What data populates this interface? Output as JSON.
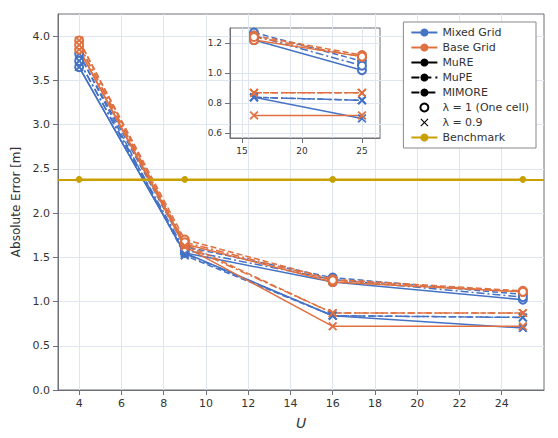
{
  "chart_data": [
    {
      "type": "line",
      "xlabel": "U",
      "ylabel": "Absolute Error [m]",
      "xlim": [
        3,
        26
      ],
      "ylim": [
        0,
        4.25
      ],
      "xticks": [
        4,
        6,
        8,
        10,
        12,
        14,
        16,
        18,
        20,
        22,
        24
      ],
      "yticks": [
        {
          "value": 0,
          "label": "0.0"
        },
        0.5,
        {
          "value": 1,
          "label": "1.0"
        },
        1.5,
        {
          "value": 2,
          "label": "2.0"
        },
        2.5,
        {
          "value": 3,
          "label": "3.0"
        },
        3.5,
        {
          "value": 4,
          "label": "4.0"
        }
      ],
      "grid": true,
      "legend": "upper right",
      "legend_items": [
        {
          "label": "Mixed Grid",
          "color": "#4472C4",
          "line_style": "solid"
        },
        {
          "label": "Base Grid",
          "color": "#E07040",
          "line_style": "solid"
        },
        {
          "label": "MuRE",
          "color": "black",
          "line_style": "solid"
        },
        {
          "label": "MuPE",
          "color": "black",
          "line_style": "dashed"
        },
        {
          "label": "MIMORE",
          "color": "black",
          "line_style": "dashdot"
        },
        {
          "label": "λ = 1 (One cell)",
          "color": "black",
          "marker": "open_circle"
        },
        {
          "label": "λ = 0.9",
          "color": "black",
          "marker": "x"
        },
        {
          "label": "Benchmark",
          "color": "#C8A000",
          "line_style": "solid",
          "marker": "circle"
        }
      ],
      "x": [
        4,
        9,
        16,
        25
      ],
      "series": [
        {
          "group": "Mixed Grid",
          "method": "MuRE",
          "lambda": "λ = 1 (One cell)",
          "values": [
            3.65,
            1.55,
            1.22,
            1.02
          ]
        },
        {
          "group": "Mixed Grid",
          "method": "MuRE",
          "lambda": "λ = 0.9",
          "values": [
            3.65,
            1.55,
            0.84,
            0.7
          ]
        },
        {
          "group": "Mixed Grid",
          "method": "MuPE",
          "lambda": "λ = 1 (One cell)",
          "values": [
            3.8,
            1.62,
            1.27,
            1.08
          ]
        },
        {
          "group": "Mixed Grid",
          "method": "MuPE",
          "lambda": "λ = 0.9",
          "values": [
            3.8,
            1.52,
            0.84,
            0.82
          ]
        },
        {
          "group": "Mixed Grid",
          "method": "MIMORE",
          "lambda": "λ = 1 (One cell)",
          "values": [
            3.72,
            1.58,
            1.25,
            1.05
          ]
        },
        {
          "group": "Mixed Grid",
          "method": "MIMORE",
          "lambda": "λ = 0.9",
          "values": [
            3.72,
            1.54,
            0.84,
            0.82
          ]
        },
        {
          "group": "Base Grid",
          "method": "MuRE",
          "lambda": "λ = 1 (One cell)",
          "values": [
            3.85,
            1.65,
            1.22,
            1.11
          ]
        },
        {
          "group": "Base Grid",
          "method": "MuRE",
          "lambda": "λ = 0.9",
          "values": [
            3.85,
            1.62,
            0.72,
            0.72
          ]
        },
        {
          "group": "Base Grid",
          "method": "MuPE",
          "lambda": "λ = 1 (One cell)",
          "values": [
            3.95,
            1.7,
            1.25,
            1.12
          ]
        },
        {
          "group": "Base Grid",
          "method": "MuPE",
          "lambda": "λ = 0.9",
          "values": [
            3.95,
            1.65,
            0.87,
            0.87
          ]
        },
        {
          "group": "Base Grid",
          "method": "MIMORE",
          "lambda": "λ = 1 (One cell)",
          "values": [
            3.9,
            1.67,
            1.24,
            1.11
          ]
        },
        {
          "group": "Base Grid",
          "method": "MIMORE",
          "lambda": "λ = 0.9",
          "values": [
            3.9,
            1.63,
            0.87,
            0.87
          ]
        },
        {
          "type": "hline",
          "group": "Benchmark",
          "values": [
            2.38,
            2.38,
            2.38,
            2.38
          ]
        }
      ]
    },
    {
      "type": "line",
      "xlim": [
        14.0,
        26.5
      ],
      "ylim": [
        0.57,
        1.3
      ],
      "xticks": [
        15,
        20,
        25
      ],
      "yticks": [
        0.6,
        0.8,
        {
          "value": 1,
          "label": "1.0"
        },
        1.2
      ],
      "grid": true,
      "x": [
        16,
        25
      ],
      "series": [
        {
          "group": "Mixed Grid",
          "method": "MuRE",
          "lambda": "λ = 1 (One cell)",
          "values": [
            1.22,
            1.02
          ]
        },
        {
          "group": "Mixed Grid",
          "method": "MuRE",
          "lambda": "λ = 0.9",
          "values": [
            0.84,
            0.7
          ]
        },
        {
          "group": "Mixed Grid",
          "method": "MuPE",
          "lambda": "λ = 1 (One cell)",
          "values": [
            1.27,
            1.08
          ]
        },
        {
          "group": "Mixed Grid",
          "method": "MuPE",
          "lambda": "λ = 0.9",
          "values": [
            0.84,
            0.82
          ]
        },
        {
          "group": "Mixed Grid",
          "method": "MIMORE",
          "lambda": "λ = 1 (One cell)",
          "values": [
            1.25,
            1.05
          ]
        },
        {
          "group": "Mixed Grid",
          "method": "MIMORE",
          "lambda": "λ = 0.9",
          "values": [
            0.84,
            0.82
          ]
        },
        {
          "group": "Base Grid",
          "method": "MuRE",
          "lambda": "λ = 1 (One cell)",
          "values": [
            1.22,
            1.11
          ]
        },
        {
          "group": "Base Grid",
          "method": "MuRE",
          "lambda": "λ = 0.9",
          "values": [
            0.72,
            0.72
          ]
        },
        {
          "group": "Base Grid",
          "method": "MuPE",
          "lambda": "λ = 1 (One cell)",
          "values": [
            1.25,
            1.12
          ]
        },
        {
          "group": "Base Grid",
          "method": "MuPE",
          "lambda": "λ = 0.9",
          "values": [
            0.87,
            0.87
          ]
        },
        {
          "group": "Base Grid",
          "method": "MIMORE",
          "lambda": "λ = 1 (One cell)",
          "values": [
            1.24,
            1.11
          ]
        },
        {
          "group": "Base Grid",
          "method": "MIMORE",
          "lambda": "λ = 0.9",
          "values": [
            0.87,
            0.87
          ]
        }
      ]
    }
  ]
}
